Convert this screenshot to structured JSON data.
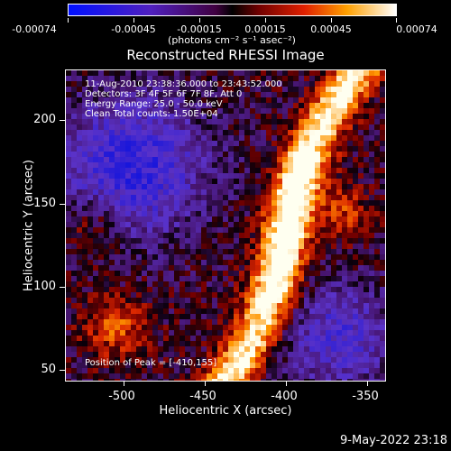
{
  "colorbar": {
    "tick_labels": [
      "-0.00074",
      "-0.00045",
      "-0.00015",
      "0.00015",
      "0.00045",
      "0.00074"
    ],
    "units": "(photons cm⁻² s⁻¹ asec⁻²)"
  },
  "plot": {
    "title": "Reconstructed RHESSI Image",
    "annotations": {
      "time": "11-Aug-2010 23:38:36.000 to 23:43:52.000",
      "detectors": "Detectors: 3F 4F 5F 6F 7F 8F, Att 0",
      "energy": "Energy Range: 25.0 - 50.0 keV",
      "clean": "Clean     Total counts: 1.50E+04",
      "peak": "Position of Peak = [-410,155]"
    },
    "xlabel": "Heliocentric X (arcsec)",
    "ylabel": "Heliocentric Y (arcsec)",
    "x_ticks": [
      "-500",
      "-450",
      "-400",
      "-350"
    ],
    "y_ticks": [
      "200",
      "150",
      "100",
      "50"
    ]
  },
  "chart_data": {
    "type": "heatmap",
    "title": "Reconstructed RHESSI Image",
    "xlabel": "Heliocentric X (arcsec)",
    "ylabel": "Heliocentric Y (arcsec)",
    "xlim": [
      -535,
      -340
    ],
    "ylim": [
      42,
      228
    ],
    "colorbar_range": [
      -0.00074,
      0.00074
    ],
    "colorbar_units": "(photons cm⁻² s⁻¹ asec⁻²)",
    "peak": {
      "x": -410,
      "y": 155
    }
  },
  "footer": {
    "date": "9-May-2022 23:18"
  },
  "colors": {
    "background": "#000000",
    "foreground": "#ffffff"
  }
}
